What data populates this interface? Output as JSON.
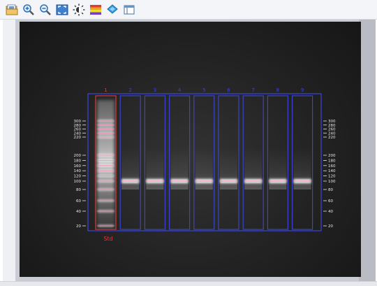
{
  "toolbar": {
    "buttons": [
      {
        "id": "open",
        "icon": "folder-image-icon"
      },
      {
        "id": "zoom-in",
        "icon": "zoom-in-icon"
      },
      {
        "id": "zoom-out",
        "icon": "zoom-out-icon"
      },
      {
        "id": "fit",
        "icon": "fit-to-window-icon"
      },
      {
        "id": "brightness",
        "icon": "brightness-icon"
      },
      {
        "id": "color-map",
        "icon": "color-map-icon"
      },
      {
        "id": "layers",
        "icon": "layers-icon"
      },
      {
        "id": "panel",
        "icon": "panel-icon"
      }
    ]
  },
  "gel": {
    "lanes": [
      {
        "number": "1",
        "type": "ladder"
      },
      {
        "number": "2",
        "type": "sample"
      },
      {
        "number": "3",
        "type": "sample"
      },
      {
        "number": "4",
        "type": "sample"
      },
      {
        "number": "5",
        "type": "sample"
      },
      {
        "number": "6",
        "type": "sample"
      },
      {
        "number": "7",
        "type": "sample"
      },
      {
        "number": "8",
        "type": "sample"
      },
      {
        "number": "9",
        "type": "sample"
      }
    ],
    "ladder_label": "Std",
    "size_markers": [
      "300",
      "280",
      "260",
      "240",
      "220",
      "200",
      "180",
      "160",
      "140",
      "120",
      "100",
      "80",
      "60",
      "40",
      "20"
    ],
    "sample_band_size": 100,
    "colors": {
      "ladder_outline": "#e23b3b",
      "lane_outline": "#3b46d8",
      "band": "#ffffff",
      "band_marker": "#ff6fa8",
      "axis_text": "#e8e8e8"
    }
  }
}
